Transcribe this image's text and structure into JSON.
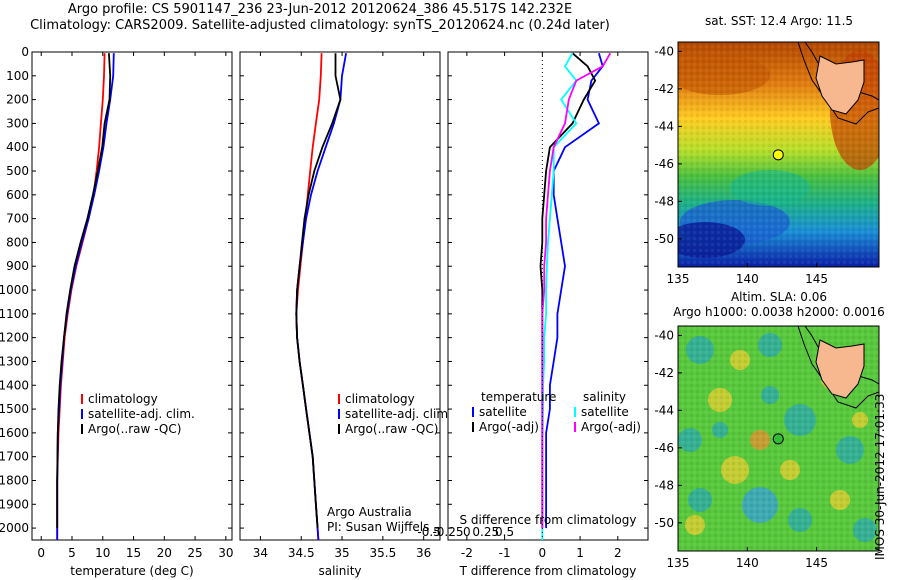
{
  "title_line1": "Argo profile: CS 5901147_236 23-Jun-2012 20120624_386 45.517S 142.232E",
  "title_line2": "Climatology: CARS2009. Satellite-adjusted climatology: synTS_20120624.nc (0.24d later)",
  "stamp": "IMOS 30-Jun-2012 17:01:33",
  "colors": {
    "climatology": "#ff0000",
    "satellite": "#0000ff",
    "argo": "#000000",
    "satellite_s": "#00ffff",
    "argo_s": "#ff00ff",
    "land": "#f7b88f"
  },
  "chart_data": [
    {
      "type": "line",
      "id": "temperature",
      "xlabel": "temperature (deg C)",
      "ylabel": "",
      "xlim": [
        -1.5,
        31
      ],
      "ylim": [
        2050,
        0
      ],
      "xticks": [
        "0",
        "5",
        "10",
        "15",
        "20",
        "25",
        "30"
      ],
      "yticks": [
        "0",
        "100",
        "200",
        "300",
        "400",
        "500",
        "600",
        "700",
        "800",
        "900",
        "1000",
        "1100",
        "1200",
        "1300",
        "1400",
        "1500",
        "1600",
        "1700",
        "1800",
        "1900",
        "2000"
      ],
      "legend": [
        "climatology",
        "satellite-adj. clim.",
        "Argo(..raw -QC)"
      ],
      "series": [
        {
          "name": "climatology",
          "color": "#ff0000",
          "x": [
            10.3,
            10.2,
            10.0,
            9.7,
            9.4,
            9.0,
            8.5,
            7.7,
            6.7,
            5.7,
            4.9,
            4.3,
            3.8,
            3.5,
            3.2,
            3.0,
            2.8,
            2.6,
            2.6
          ],
          "y": [
            5,
            100,
            200,
            300,
            400,
            500,
            600,
            700,
            800,
            900,
            1000,
            1100,
            1200,
            1300,
            1400,
            1500,
            1600,
            1800,
            2050
          ]
        },
        {
          "name": "satellite-adj. clim.",
          "color": "#0000ff",
          "x": [
            11.8,
            11.7,
            11.2,
            10.6,
            10.1,
            9.4,
            8.6,
            7.7,
            6.6,
            5.6,
            4.8,
            4.2,
            3.7,
            3.4,
            3.1,
            2.9,
            2.7,
            2.6,
            2.6
          ],
          "y": [
            5,
            100,
            200,
            300,
            400,
            500,
            600,
            700,
            800,
            900,
            1000,
            1100,
            1200,
            1300,
            1400,
            1500,
            1600,
            1800,
            2050
          ]
        },
        {
          "name": "Argo(..raw -QC)",
          "color": "#000000",
          "x": [
            11.0,
            11.2,
            11.1,
            10.3,
            9.9,
            9.2,
            8.4,
            7.5,
            6.4,
            5.4,
            4.7,
            4.1,
            3.7,
            3.3,
            3.0,
            2.8,
            2.7,
            2.6,
            2.6
          ],
          "y": [
            5,
            100,
            200,
            300,
            400,
            500,
            600,
            700,
            800,
            900,
            1000,
            1100,
            1200,
            1300,
            1400,
            1500,
            1600,
            1800,
            2000
          ]
        }
      ]
    },
    {
      "type": "line",
      "id": "salinity",
      "xlabel": "salinity",
      "xlim": [
        33.75,
        36.2
      ],
      "ylim": [
        2050,
        0
      ],
      "xticks": [
        "34",
        "34.5",
        "35",
        "35.5",
        "36"
      ],
      "legend": [
        "climatology",
        "satellite-adj. clim.",
        "Argo(..raw -QC)"
      ],
      "annotation": [
        "Argo Australia",
        "PI: Susan Wijffels"
      ],
      "series": [
        {
          "name": "climatology",
          "color": "#ff0000",
          "x": [
            34.75,
            34.74,
            34.72,
            34.68,
            34.64,
            34.61,
            34.58,
            34.55,
            34.52,
            34.49,
            34.46,
            34.44,
            34.45,
            34.48,
            34.52,
            34.56,
            34.6,
            34.64,
            34.68,
            34.71
          ],
          "y": [
            5,
            100,
            200,
            300,
            400,
            500,
            600,
            700,
            800,
            900,
            1000,
            1100,
            1200,
            1300,
            1400,
            1500,
            1600,
            1700,
            1900,
            2050
          ]
        },
        {
          "name": "satellite-adj. clim.",
          "color": "#0000ff",
          "x": [
            35.05,
            35.0,
            34.98,
            34.9,
            34.8,
            34.7,
            34.62,
            34.56,
            34.52,
            34.48,
            34.45,
            34.44,
            34.45,
            34.48,
            34.52,
            34.56,
            34.6,
            34.64,
            34.68,
            34.71
          ],
          "y": [
            5,
            100,
            200,
            300,
            400,
            500,
            600,
            700,
            800,
            900,
            1000,
            1100,
            1200,
            1300,
            1400,
            1500,
            1600,
            1700,
            1900,
            2050
          ]
        },
        {
          "name": "Argo(..raw -QC)",
          "color": "#000000",
          "x": [
            34.92,
            34.92,
            34.98,
            34.88,
            34.76,
            34.66,
            34.59,
            34.54,
            34.51,
            34.48,
            34.45,
            34.44,
            34.45,
            34.48,
            34.52,
            34.56,
            34.6,
            34.64,
            34.68,
            34.7
          ],
          "y": [
            5,
            100,
            200,
            300,
            400,
            500,
            600,
            700,
            800,
            900,
            1000,
            1100,
            1200,
            1300,
            1400,
            1500,
            1600,
            1700,
            1900,
            2000
          ]
        }
      ]
    },
    {
      "type": "line",
      "id": "difference",
      "xlabel": "T difference from climatology",
      "xlabel2": "S difference from climatology",
      "xlim": [
        -2.5,
        2.8
      ],
      "ylim": [
        2050,
        0
      ],
      "xticks": [
        "-2",
        "-1",
        "0",
        "1",
        "2"
      ],
      "xticks2": [
        "-0.5",
        "-0.25",
        "0",
        "0.25",
        "0.5"
      ],
      "legend_left_title": "temperature",
      "legend_right_title": "salinity",
      "legend": [
        "satellite",
        "Argo(-adj)",
        "satellite",
        "Argo(-adj)"
      ],
      "series": [
        {
          "name": "satellite",
          "color": "#0000ff",
          "x": [
            1.5,
            1.6,
            1.3,
            1.2,
            1.5,
            0.6,
            0.3,
            0.3,
            0.4,
            0.5,
            0.6,
            0.5,
            0.4,
            0.4,
            0.3,
            0.2,
            0.2,
            0.1,
            0.1,
            0.1
          ],
          "y": [
            5,
            60,
            120,
            200,
            300,
            400,
            500,
            600,
            700,
            800,
            900,
            1000,
            1100,
            1200,
            1300,
            1400,
            1500,
            1600,
            1800,
            2000
          ]
        },
        {
          "name": "Argo(-adj)",
          "color": "#000000",
          "x": [
            0.8,
            1.2,
            1.4,
            1.1,
            0.8,
            0.2,
            0.1,
            0.05,
            0.0,
            0.0,
            -0.05,
            0.0,
            0.0,
            0.0,
            0.0,
            0.0,
            0.0,
            0.0,
            0.0
          ],
          "y": [
            5,
            60,
            120,
            200,
            300,
            400,
            500,
            600,
            700,
            800,
            900,
            1000,
            1100,
            1200,
            1300,
            1400,
            1500,
            1700,
            2000
          ]
        },
        {
          "name": "satellite",
          "color": "#00ffff",
          "x": [
            0.8,
            0.6,
            0.9,
            0.5,
            0.9,
            0.3,
            0.3,
            0.25,
            0.2,
            0.15,
            0.12,
            0.1,
            0.1,
            0.05,
            0.05,
            0.02,
            0.02,
            0.0,
            0.0
          ],
          "y": [
            5,
            60,
            120,
            200,
            300,
            400,
            500,
            600,
            700,
            800,
            900,
            1000,
            1100,
            1200,
            1300,
            1400,
            1500,
            1700,
            2050
          ]
        },
        {
          "name": "Argo(-adj)",
          "color": "#ff00ff",
          "x": [
            1.8,
            1.6,
            0.9,
            0.7,
            0.6,
            0.3,
            0.2,
            0.15,
            0.1,
            0.1,
            0.05,
            0.05,
            0.0,
            0.0,
            0.0,
            0.0,
            0.0,
            0.0,
            0.0
          ],
          "y": [
            5,
            60,
            120,
            200,
            300,
            400,
            500,
            600,
            700,
            800,
            900,
            1000,
            1100,
            1200,
            1300,
            1400,
            1500,
            1700,
            2000
          ]
        }
      ]
    },
    {
      "type": "heatmap",
      "id": "sst_map",
      "title": "sat. SST: 12.4  Argo: 11.5",
      "xticks": [
        "135",
        "140",
        "145"
      ],
      "yticks": [
        "-40",
        "-42",
        "-44",
        "-46",
        "-48",
        "-50"
      ],
      "xlim": [
        135,
        149.5
      ],
      "ylim": [
        -51.5,
        -39.5
      ],
      "argo_position": [
        142.232,
        -45.517
      ]
    },
    {
      "type": "heatmap",
      "id": "sla_map",
      "title": "Altim. SLA: 0.06",
      "subtitle": "Argo h1000: 0.0038  h2000: 0.0016",
      "xticks": [
        "135",
        "140",
        "145"
      ],
      "yticks": [
        "-40",
        "-42",
        "-44",
        "-46",
        "-48",
        "-50"
      ],
      "xlim": [
        135,
        149.5
      ],
      "ylim": [
        -51.5,
        -39.5
      ],
      "argo_position": [
        142.232,
        -45.517
      ]
    }
  ]
}
